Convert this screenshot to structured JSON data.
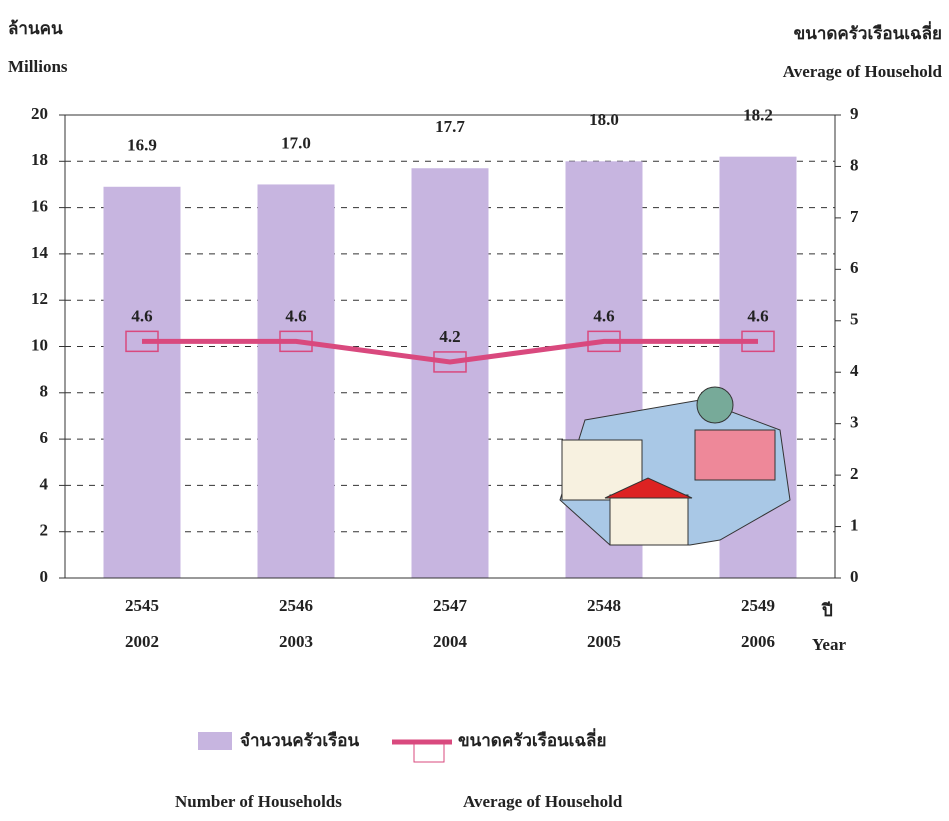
{
  "chart_data": {
    "type": "bar_line",
    "y_label": [
      "ล้านคน",
      "Millions"
    ],
    "y2_label": [
      "ขนาดครัวเรือนเฉลี่ย",
      "Average of Household"
    ],
    "x_label": [
      "ปี",
      "Year"
    ],
    "categories": [
      [
        "2545",
        "2002"
      ],
      [
        "2546",
        "2003"
      ],
      [
        "2547",
        "2004"
      ],
      [
        "2548",
        "2005"
      ],
      [
        "2549",
        "2006"
      ]
    ],
    "series": [
      {
        "name": "จำนวนครัวเรือน",
        "name_en": "Number of Households",
        "type": "bar",
        "color": "#c7b5e0",
        "values": [
          16.9,
          17.0,
          17.7,
          18.0,
          18.2
        ],
        "value_labels": [
          "16.9",
          "17.0",
          "17.7",
          "18.0",
          "18.2"
        ]
      },
      {
        "name": "ขนาดครัวเรือนเฉลี่ย",
        "name_en": "Average of Household",
        "type": "line",
        "color": "#d9497e",
        "axis": "y2",
        "values": [
          4.6,
          4.6,
          4.2,
          4.6,
          4.6
        ]
      }
    ],
    "ylim": [
      0,
      20
    ],
    "yticks": [
      0,
      2,
      4,
      6,
      8,
      10,
      12,
      14,
      16,
      18,
      20
    ],
    "y2lim": [
      0,
      9
    ],
    "y2ticks": [
      0,
      1,
      2,
      3,
      4,
      5,
      6,
      7,
      8,
      9
    ],
    "grid": true
  }
}
